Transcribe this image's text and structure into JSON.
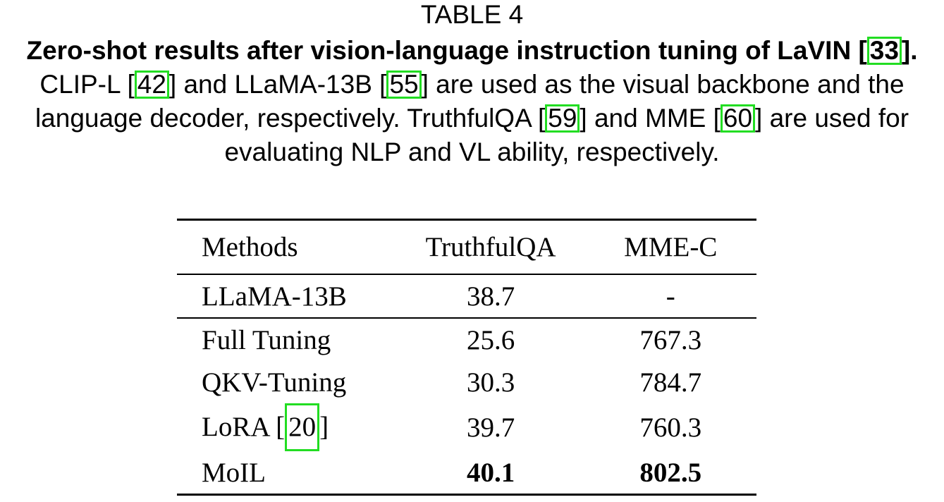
{
  "caption": {
    "label": "TABLE 4",
    "bold_title": "Zero-shot results after vision-language instruction tuning of LaVIN [",
    "bold_ref": "33",
    "bold_close": "].",
    "text_1": " CLIP-L [",
    "ref_1": "42",
    "text_2": "] and LLaMA-13B [",
    "ref_2": "55",
    "text_3": "] are used as the visual backbone and the language decoder, respectively. TruthfulQA [",
    "ref_3": "59",
    "text_4": "] and MME [",
    "ref_4": "60",
    "text_5": "] are used for evaluating NLP and VL ability, respectively."
  },
  "table": {
    "headers": [
      "Methods",
      "TruthfulQA",
      "MME-C"
    ],
    "baseline": {
      "method": "LLaMA-13B",
      "truthfulqa": "38.7",
      "mme_c": "-"
    },
    "rows": [
      {
        "method": "Full Tuning",
        "truthfulqa": "25.6",
        "mme_c": "767.3"
      },
      {
        "method": "QKV-Tuning",
        "truthfulqa": "30.3",
        "mme_c": "784.7"
      },
      {
        "method_prefix": "LoRA [",
        "method_ref": "20",
        "method_suffix": "]",
        "truthfulqa": "39.7",
        "mme_c": "760.3"
      },
      {
        "method": "MoIL",
        "truthfulqa": "40.1",
        "mme_c": "802.5"
      }
    ]
  },
  "colors": {
    "citation_box": "#22dd22",
    "text": "#000000",
    "background": "#ffffff"
  }
}
